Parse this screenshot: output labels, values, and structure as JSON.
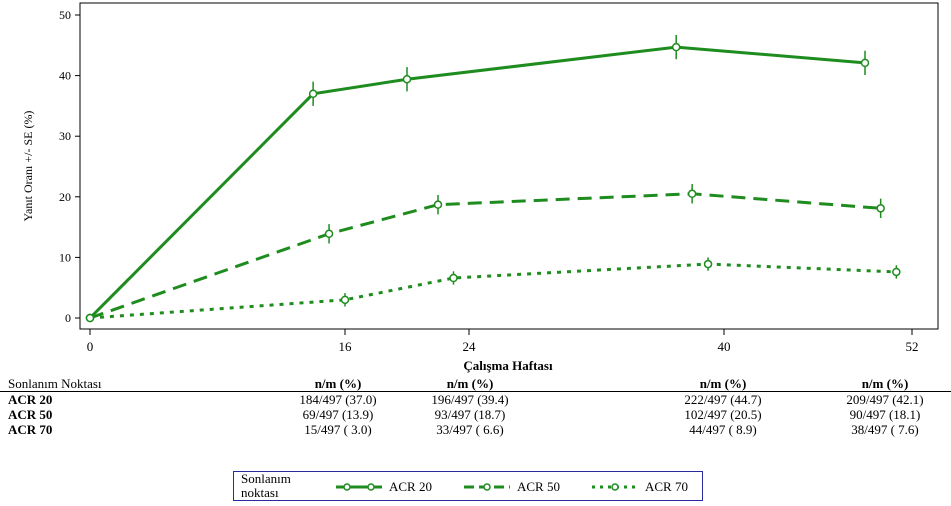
{
  "chart_data": {
    "type": "line",
    "title": "",
    "xlabel": "Çalışma Haftası",
    "ylabel": "Yanıt Oranı +/- SE (%)",
    "x": [
      0,
      16,
      24,
      40,
      52
    ],
    "xticks": [
      "0",
      "16",
      "24",
      "40",
      "52"
    ],
    "ylim": [
      0,
      50
    ],
    "yticks": [
      "0",
      "10",
      "20",
      "30",
      "40",
      "50"
    ],
    "color": "#1e8c1e",
    "series": [
      {
        "name": "ACR 20",
        "style": "solid",
        "points": [
          [
            0,
            0
          ],
          [
            14,
            37.0
          ],
          [
            20,
            39.4
          ],
          [
            37,
            44.7
          ],
          [
            49,
            42.1
          ]
        ],
        "se": 2.0
      },
      {
        "name": "ACR 50",
        "style": "dashed",
        "points": [
          [
            0,
            0
          ],
          [
            15,
            13.9
          ],
          [
            22,
            18.7
          ],
          [
            38,
            20.5
          ],
          [
            50,
            18.1
          ]
        ],
        "se": 1.6
      },
      {
        "name": "ACR 70",
        "style": "dotted",
        "points": [
          [
            0,
            0
          ],
          [
            16,
            3.0
          ],
          [
            23,
            6.6
          ],
          [
            39,
            8.9
          ],
          [
            51,
            7.6
          ]
        ],
        "se": 1.1
      }
    ],
    "legend": "bottom"
  },
  "table": {
    "header_label": "Sonlanım Noktası",
    "col_header": "n/m (%)",
    "rows": [
      {
        "label": "ACR 20",
        "cells": [
          "184/497 (37.0)",
          "196/497 (39.4)",
          "222/497 (44.7)",
          "209/497 (42.1)"
        ]
      },
      {
        "label": "ACR 50",
        "cells": [
          "69/497 (13.9)",
          "93/497 (18.7)",
          "102/497 (20.5)",
          "90/497 (18.1)"
        ]
      },
      {
        "label": "ACR 70",
        "cells": [
          "15/497 ( 3.0)",
          "33/497 ( 6.6)",
          "44/497 ( 8.9)",
          "38/497 ( 7.6)"
        ]
      }
    ]
  },
  "legend": {
    "title": "Sonlanım noktası",
    "items": [
      "ACR 20",
      "ACR 50",
      "ACR 70"
    ]
  }
}
